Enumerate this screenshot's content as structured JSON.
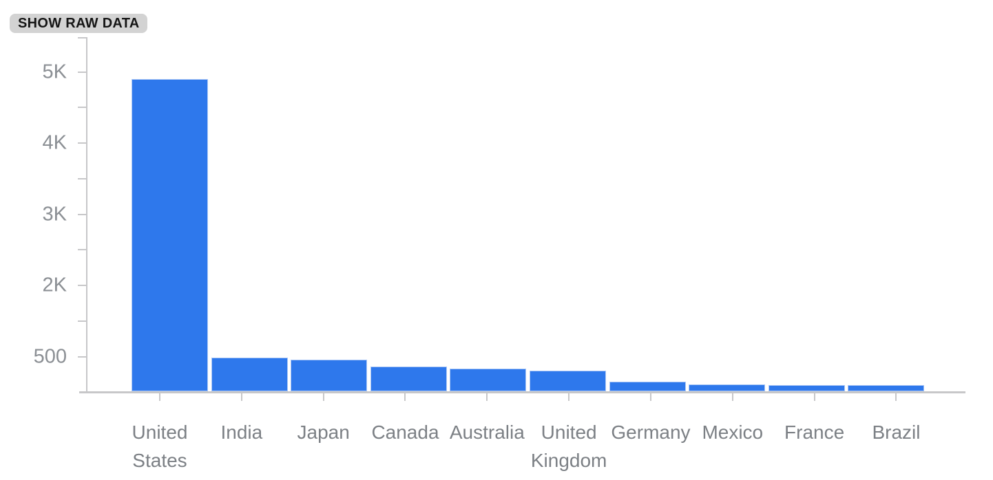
{
  "toolbar": {
    "show_raw_data_label": "SHOW RAW DATA"
  },
  "chart_data": {
    "type": "bar",
    "title": "",
    "xlabel": "",
    "ylabel": "",
    "categories": [
      "United States",
      "India",
      "Japan",
      "Canada",
      "Australia",
      "United Kingdom",
      "Germany",
      "Mexico",
      "France",
      "Brazil"
    ],
    "values": [
      4885,
      480,
      450,
      350,
      320,
      290,
      140,
      100,
      85,
      84
    ],
    "y_tick_labels": [
      "5K",
      "4K",
      "3K",
      "2K",
      "500"
    ],
    "y_tick_values": [
      5000,
      4000,
      3000,
      2000,
      500
    ],
    "ylim": [
      0,
      5500
    ],
    "grid": false,
    "legend_position": "none",
    "bar_color": "#2e78ec",
    "bar_border_color": "#aac6f5",
    "axis_color": "#c7c7c9",
    "y_label_color": "#8b8f94",
    "x_label_color": "#7c8085",
    "chip_background": "#d3d3d3",
    "chip_text_color": "#151515"
  }
}
